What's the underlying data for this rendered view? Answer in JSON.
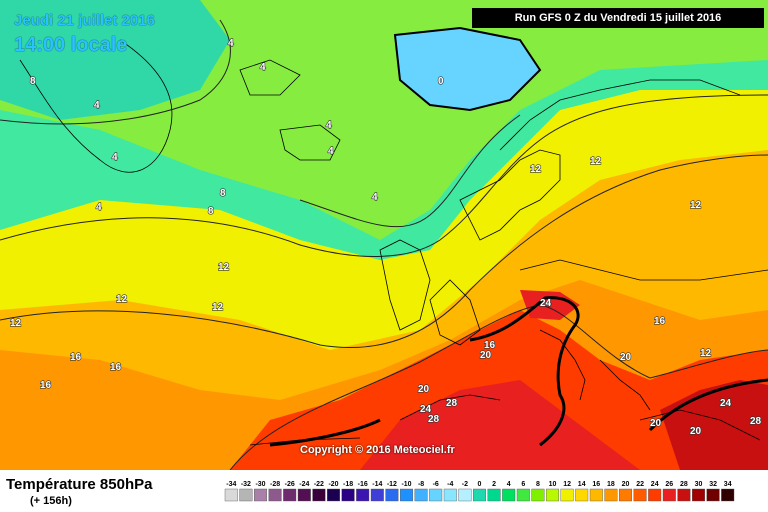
{
  "header": {
    "date": "Jeudi 21 juillet 2016",
    "time": "14:00 locale",
    "run": "Run GFS 0 Z du Vendredi 15 juillet 2016"
  },
  "copyright": "Copyright © 2016 Meteociel.fr",
  "footer": {
    "variable": "Température 850hPa",
    "lead": "(+ 156h)"
  },
  "legend": {
    "ticks": [
      "-34",
      "-32",
      "-30",
      "-28",
      "-26",
      "-24",
      "-22",
      "-20",
      "-18",
      "-16",
      "-14",
      "-12",
      "-10",
      "-8",
      "-6",
      "-4",
      "-2",
      "0",
      "2",
      "4",
      "6",
      "8",
      "10",
      "12",
      "14",
      "16",
      "18",
      "20",
      "22",
      "24",
      "26",
      "28",
      "30",
      "32",
      "34"
    ],
    "colors": [
      "#d9d9d9",
      "#b5b5b5",
      "#a880a8",
      "#8e5a8e",
      "#6e2b6e",
      "#521052",
      "#3a003a",
      "#1b0052",
      "#2c0082",
      "#3c14b0",
      "#3f3fd8",
      "#2b6bf0",
      "#1e90ff",
      "#40b0ff",
      "#66d4ff",
      "#8ae6ff",
      "#b4f0ff",
      "#20d8b0",
      "#00d890",
      "#00e060",
      "#40e840",
      "#80f000",
      "#b8f800",
      "#f0f000",
      "#ffd800",
      "#ffb800",
      "#ff9800",
      "#ff7a00",
      "#ff5c00",
      "#ff3c00",
      "#e82020",
      "#c81010",
      "#a00000",
      "#700000",
      "#300000"
    ]
  },
  "isotherm_labels": [
    {
      "v": "4"
    },
    {
      "v": "4"
    },
    {
      "v": "4"
    },
    {
      "v": "4"
    },
    {
      "v": "4"
    },
    {
      "v": "4"
    },
    {
      "v": "4"
    },
    {
      "v": "4"
    },
    {
      "v": "0"
    },
    {
      "v": "8"
    },
    {
      "v": "8"
    },
    {
      "v": "8"
    },
    {
      "v": "12"
    },
    {
      "v": "12"
    },
    {
      "v": "12"
    },
    {
      "v": "12"
    },
    {
      "v": "16"
    },
    {
      "v": "16"
    },
    {
      "v": "16"
    },
    {
      "v": "20"
    },
    {
      "v": "20"
    },
    {
      "v": "24"
    },
    {
      "v": "24"
    },
    {
      "v": "28"
    },
    {
      "v": "28"
    },
    {
      "v": "20"
    },
    {
      "v": "20"
    },
    {
      "v": "16"
    },
    {
      "v": "12"
    },
    {
      "v": "12"
    },
    {
      "v": "16"
    },
    {
      "v": "20"
    },
    {
      "v": "24"
    },
    {
      "v": "28"
    },
    {
      "v": "12"
    },
    {
      "v": "12"
    }
  ]
}
